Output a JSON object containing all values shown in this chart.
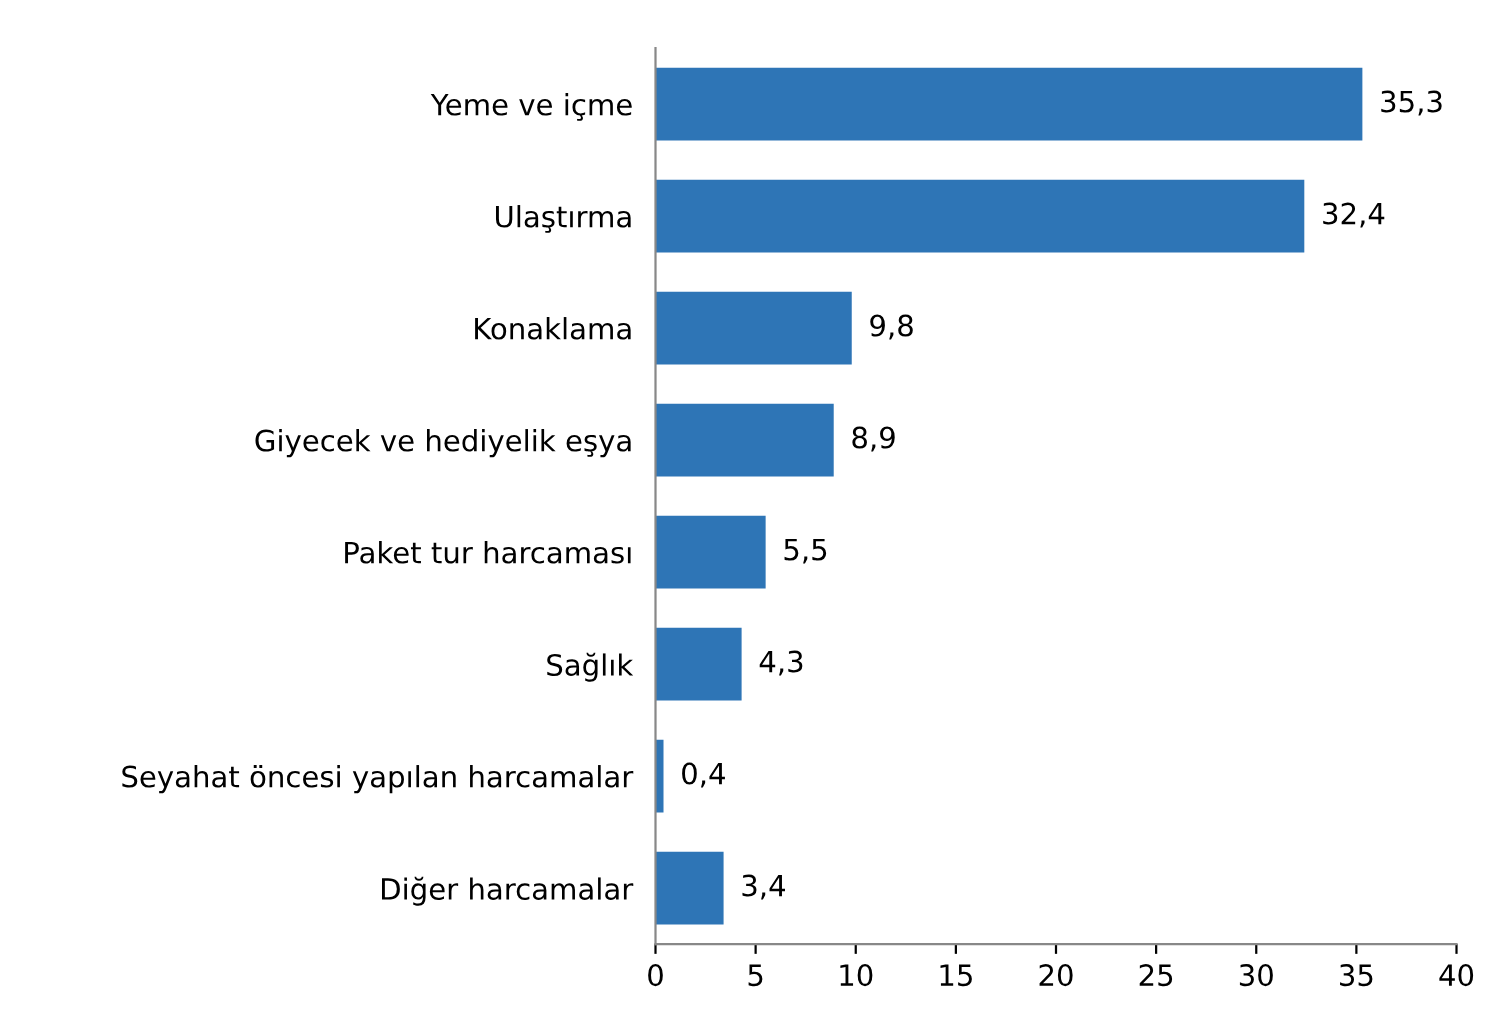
{
  "chart_data": {
    "type": "bar",
    "orientation": "horizontal",
    "categories": [
      "Yeme ve içme",
      "Ulaştırma",
      "Konaklama",
      "Giyecek ve hediyelik eşya",
      "Paket tur harcaması",
      "Sağlık",
      "Seyahat öncesi yapılan harcamalar",
      "Diğer harcamalar"
    ],
    "values": [
      35.3,
      32.4,
      9.8,
      8.9,
      5.5,
      4.3,
      0.4,
      3.4
    ],
    "value_labels": [
      "35,3",
      "32,4",
      "9,8",
      "8,9",
      "5,5",
      "4,3",
      "0,4",
      "3,4"
    ],
    "color": "#2e75b6",
    "xlim": [
      0,
      40
    ],
    "xticks": [
      0,
      5,
      10,
      15,
      20,
      25,
      30,
      35,
      40
    ],
    "grid": false,
    "legend": false
  }
}
